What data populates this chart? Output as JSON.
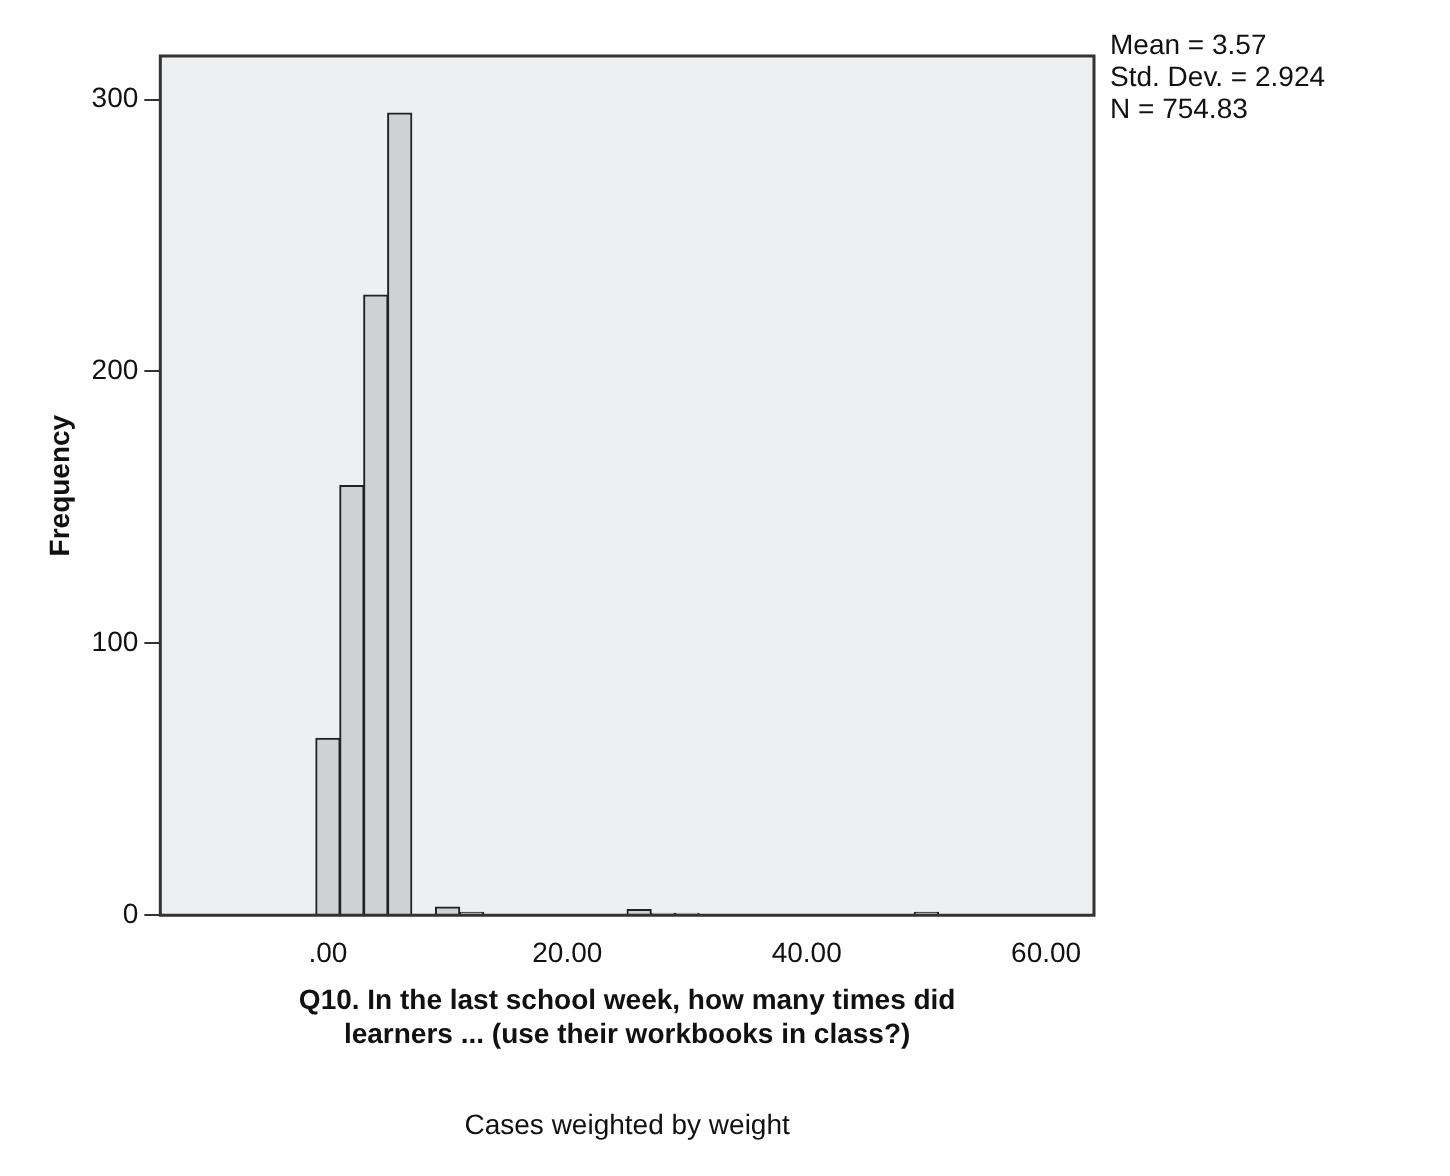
{
  "chart_data": {
    "type": "histogram",
    "xlabel": "Q10. In the last school week, how many times did learners ... (use their workbooks in class?)",
    "ylabel": "Frequency",
    "bins": [
      -1,
      1,
      3,
      5,
      7,
      9,
      11,
      13,
      15,
      17,
      19,
      21,
      23,
      25,
      27,
      29,
      31,
      33,
      35,
      37,
      39,
      41,
      43,
      45,
      47,
      49,
      51
    ],
    "values": [
      65,
      158,
      228,
      295,
      null,
      3,
      1,
      null,
      0,
      0,
      0,
      0,
      0,
      2,
      0.7,
      0.7,
      0,
      0,
      0,
      0,
      0,
      0,
      0,
      0,
      0,
      1
    ],
    "color": "#d0d1d3",
    "xlim": [
      -14,
      64
    ],
    "xticks": [
      {
        "value": 0,
        "label": ".00"
      },
      {
        "value": 20,
        "label": "20.00"
      },
      {
        "value": 40,
        "label": "40.00"
      },
      {
        "value": 60,
        "label": "60.00"
      }
    ],
    "ylim": [
      0,
      316
    ],
    "yticks": [
      0,
      100,
      200,
      300
    ],
    "grid": false,
    "legend": false,
    "annotations": [
      "Mean = 3.57",
      "Std. Dev. = 2.924",
      "N = 754.83",
      "Cases weighted by weight"
    ]
  }
}
